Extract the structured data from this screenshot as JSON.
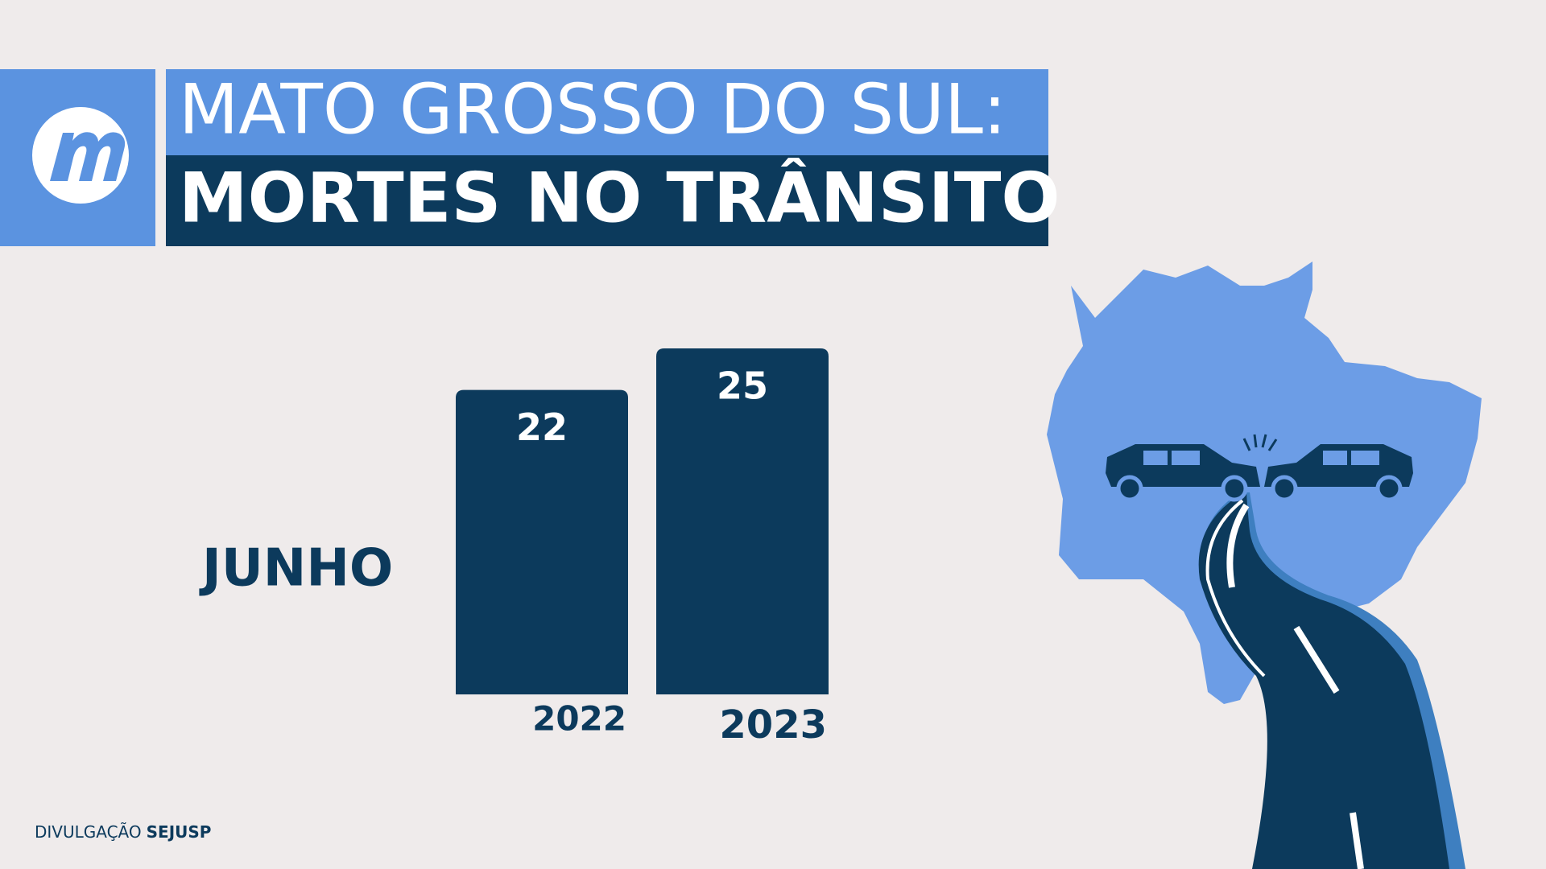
{
  "chart_data": {
    "type": "bar",
    "title_lines": [
      "MATO GROSSO DO SUL:",
      "MORTES NO TRÂNSITO"
    ],
    "categories": [
      "2022",
      "2023"
    ],
    "series": [
      {
        "name": "JUNHO",
        "color": "#0c3a5c",
        "values": [
          22,
          25
        ]
      }
    ],
    "credit": {
      "label": "DIVULGAÇÃO",
      "source": "SEJUSP"
    }
  }
}
